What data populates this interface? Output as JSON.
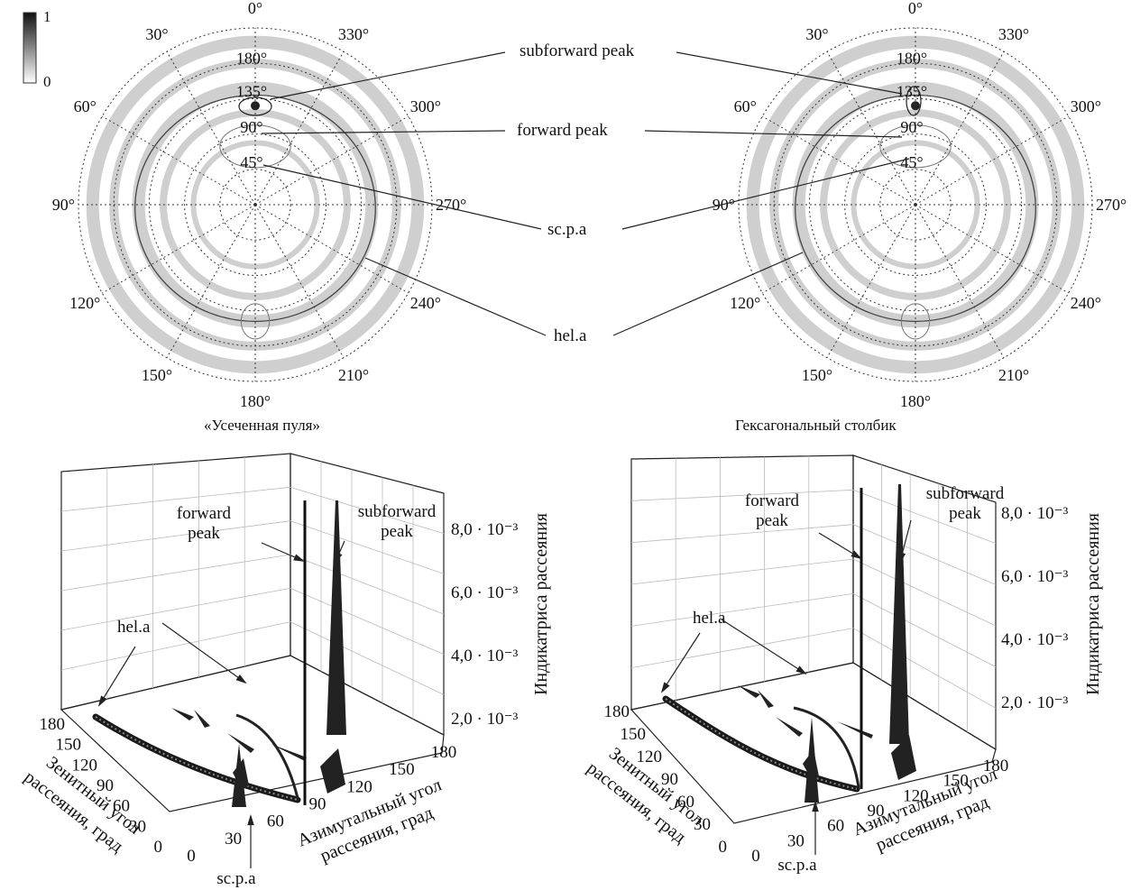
{
  "colorbar": {
    "max": "1",
    "min": "0"
  },
  "polar": {
    "azimuth_labels": [
      "0°",
      "30°",
      "60°",
      "90°",
      "120°",
      "150°",
      "180°",
      "210°",
      "240°",
      "270°",
      "300°",
      "330°"
    ],
    "zenith_labels": [
      "180°",
      "135°",
      "90°",
      "45°"
    ]
  },
  "callouts": {
    "subforward": "subforward peak",
    "forward": "forward peak",
    "scpa": "sc.p.a",
    "hela": "hel.a"
  },
  "captions": {
    "left": "«Усеченная пуля»",
    "right": "Гексагональный столбик"
  },
  "surface": {
    "forward1": "forward",
    "forward2": "peak",
    "subforward1": "subforward",
    "subforward2": "peak",
    "hela": "hel.a",
    "scpa": "sc.p.a",
    "z_labels": [
      "2,0 · 10⁻³",
      "4,0 · 10⁻³",
      "6,0 · 10⁻³",
      "8,0 · 10⁻³"
    ],
    "z_title": "Индикатриса рассеяния",
    "zenith_ticks": [
      "0",
      "30",
      "60",
      "90",
      "120",
      "150",
      "180"
    ],
    "azimuth_ticks": [
      "0",
      "30",
      "60",
      "90",
      "120",
      "150",
      "180"
    ],
    "zenith_title1": "Зенитный угол",
    "zenith_title2": "рассеяния, град",
    "azimuth_title1": "Азимутальный угол",
    "azimuth_title2": "рассеяния, град"
  }
}
